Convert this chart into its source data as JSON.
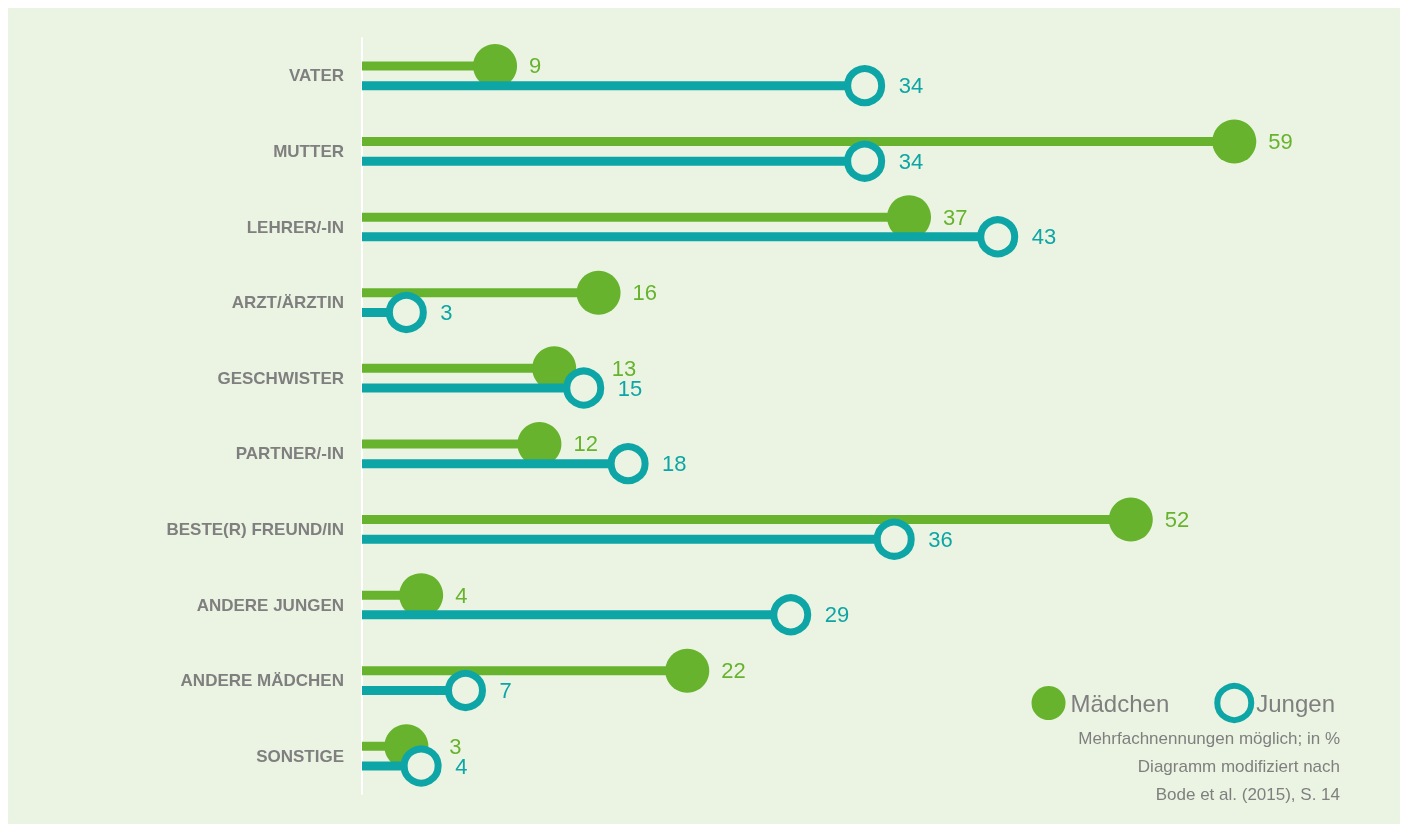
{
  "chart_data": {
    "type": "lollipop",
    "orientation": "horizontal",
    "data_labels": true,
    "legend": "bottom right",
    "marker": "circle",
    "categories": [
      "VATER",
      "MUTTER",
      "LEHRER/-IN",
      "ARZT/ÄRZTIN",
      "GESCHWISTER",
      "PARTNER/-IN",
      "BESTE(R) FREUND/IN",
      "ANDERE JUNGEN",
      "ANDERE MÄDCHEN",
      "SONSTIGE"
    ],
    "series": [
      {
        "name": "Mädchen",
        "color": "#67b32e",
        "values": [
          9,
          59,
          37,
          16,
          13,
          12,
          52,
          4,
          22,
          3
        ]
      },
      {
        "name": "Jungen",
        "color": "#0ea5a6",
        "values": [
          34,
          34,
          43,
          3,
          15,
          18,
          36,
          29,
          7,
          4
        ]
      }
    ],
    "annotations": [
      "Mehrfachnennungen möglich; in %",
      "Diagramm modifiziert nach",
      "Bode et al. (2015), S. 14"
    ]
  }
}
